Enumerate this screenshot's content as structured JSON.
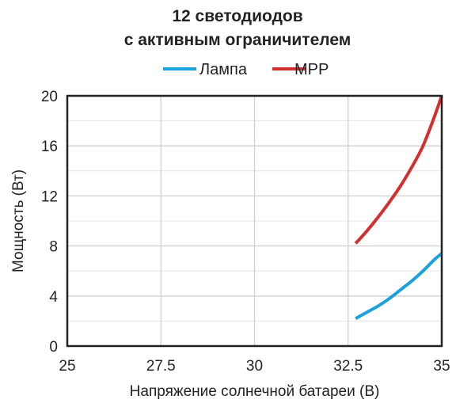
{
  "chart_data": {
    "type": "line",
    "title_lines": [
      "12 светодиодов",
      "с активным ограничителем"
    ],
    "xlabel": "Напряжение солнечной батареи (В)",
    "ylabel": "Мощность (Вт)",
    "xlim": [
      25,
      35
    ],
    "ylim": [
      0,
      20
    ],
    "x_ticks": [
      25,
      27.5,
      30,
      32.5,
      35
    ],
    "x_tick_labels": [
      "25",
      "27.5",
      "30",
      "32.5",
      "35"
    ],
    "y_ticks": [
      0,
      4,
      8,
      12,
      16,
      20
    ],
    "y_tick_labels": [
      "0",
      "4",
      "8",
      "12",
      "16",
      "20"
    ],
    "grid": true,
    "legend_position": "top-center",
    "series": [
      {
        "name": "Лампа",
        "color": "#1ba1dc",
        "x": [
          32.7,
          33.0,
          33.3,
          33.6,
          33.9,
          34.2,
          34.5,
          34.8,
          35.0
        ],
        "y": [
          2.2,
          2.7,
          3.2,
          3.8,
          4.5,
          5.2,
          6.0,
          6.9,
          7.4
        ]
      },
      {
        "name": "MPP",
        "color": "#d32f2f",
        "x": [
          32.7,
          33.0,
          33.3,
          33.6,
          33.9,
          34.2,
          34.5,
          34.8,
          35.0
        ],
        "y": [
          8.2,
          9.2,
          10.3,
          11.5,
          12.8,
          14.3,
          16.0,
          18.3,
          20.0
        ]
      }
    ]
  }
}
